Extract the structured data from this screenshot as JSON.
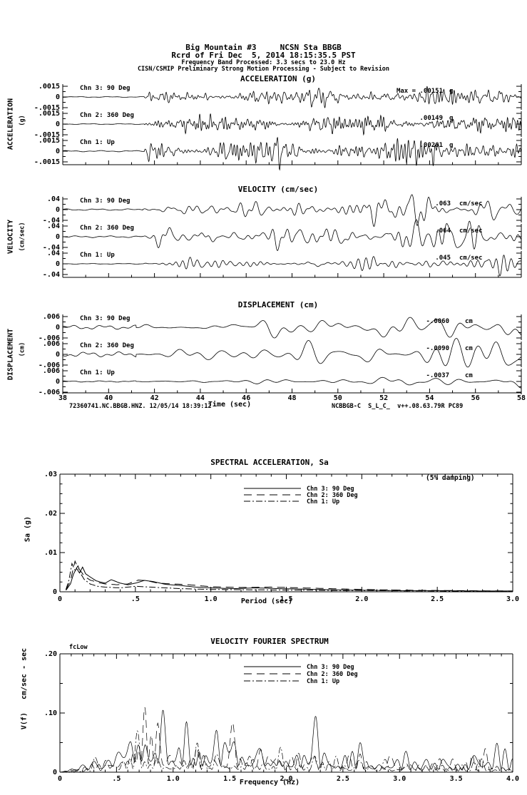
{
  "colors": {
    "ink": "#000000",
    "paper": "#ffffff"
  },
  "header": {
    "line1": "Big Mountain #3     NCSN Sta BBGB",
    "line2": "Rcrd of Fri Dec  5, 2014 18:15:35.5 PST",
    "line3": "Frequency Band Processed: 3.3 secs to 23.0 Hz",
    "line4": "CISN/CSMIP Preliminary Strong Motion Processing - Subject to Revision"
  },
  "footer": {
    "left": "72360741.NC.BBGB.HNZ. 12/05/14 18:39:12",
    "right": "NCBBGB-C  S_L_C_  v++.08.63.79R PC89"
  },
  "chart_data": [
    {
      "id": "timeseries-panels",
      "type": "line",
      "x": {
        "label": "Time (sec)",
        "min": 38,
        "max": 58,
        "minor_step": 1,
        "major_ticks": [
          38,
          40,
          42,
          44,
          46,
          48,
          50,
          52,
          54,
          56,
          58
        ],
        "major_labels": [
          "38",
          "40",
          "42",
          "44",
          "46",
          "48",
          "50",
          "52",
          "54",
          "56",
          "58"
        ]
      },
      "groups": [
        {
          "title": "ACCELERATION (g)",
          "side_label": "ACCELERATION",
          "side_unit": "(g)",
          "unit": "g",
          "tick_label": ".0015",
          "zero_label": "0",
          "neg_label": "-.0015",
          "tick_num": 0.0015,
          "channels": [
            {
              "label": "Chn 3: 90 Deg",
              "max_label": "Max =   .00151",
              "max_num": 0.00151
            },
            {
              "label": "Chn 2: 360 Deg",
              "max_label": ".00149",
              "max_num": 0.00149
            },
            {
              "label": "Chn 1: Up",
              "max_label": ".00261",
              "max_num": 0.00261
            }
          ]
        },
        {
          "title": "VELOCITY (cm/sec)",
          "side_label": "VELOCITY",
          "side_unit": "(cm/sec)",
          "unit": "cm/sec",
          "tick_label": ".04",
          "zero_label": "0",
          "neg_label": "-.04",
          "tick_num": 0.04,
          "channels": [
            {
              "label": "Chn 3: 90 Deg",
              "max_label": ".063",
              "max_num": 0.063
            },
            {
              "label": "Chn 2: 360 Deg",
              "max_label": ".064",
              "max_num": 0.064
            },
            {
              "label": "Chn 1: Up",
              "max_label": ".045",
              "max_num": 0.045
            }
          ]
        },
        {
          "title": "DISPLACEMENT (cm)",
          "side_label": "DISPLACEMENT",
          "side_unit": "(cm)",
          "unit": "cm",
          "tick_label": ".006",
          "zero_label": "0",
          "neg_label": "-.006",
          "tick_num": 0.006,
          "channels": [
            {
              "label": "Chn 3: 90 Deg",
              "max_label": "-.0060",
              "max_num": 0.006
            },
            {
              "label": "Chn 2: 360 Deg",
              "max_label": "-.0090",
              "max_num": 0.009
            },
            {
              "label": "Chn 1: Up",
              "max_label": "-.0037",
              "max_num": 0.0037
            }
          ]
        }
      ]
    },
    {
      "id": "spectral-acceleration",
      "type": "line",
      "title": "SPECTRAL ACCELERATION, Sa",
      "note": "(5% damping)",
      "xlabel": "Period (sec)",
      "ylabel": "Sa (g)",
      "xlim": [
        0,
        3
      ],
      "ylim": [
        0,
        0.03
      ],
      "x_major": [
        0,
        0.5,
        1,
        1.5,
        2,
        2.5,
        3
      ],
      "x_labels": [
        "0",
        ".5",
        "1.0",
        "1.5",
        "2.0",
        "2.5",
        "3.0"
      ],
      "y_major": [
        0,
        0.01,
        0.02,
        0.03
      ],
      "y_labels": [
        "0",
        ".01",
        ".02",
        ".03"
      ],
      "legend_position": "top-center",
      "series": [
        {
          "name": "Chn 3: 90 Deg",
          "style": "solid",
          "points": [
            [
              0.04,
              0.0004
            ],
            [
              0.07,
              0.002
            ],
            [
              0.09,
              0.0045
            ],
            [
              0.11,
              0.006
            ],
            [
              0.13,
              0.0048
            ],
            [
              0.15,
              0.0063
            ],
            [
              0.17,
              0.0046
            ],
            [
              0.2,
              0.0038
            ],
            [
              0.24,
              0.0028
            ],
            [
              0.3,
              0.0022
            ],
            [
              0.34,
              0.0031
            ],
            [
              0.4,
              0.0022
            ],
            [
              0.45,
              0.0018
            ],
            [
              0.5,
              0.0022
            ],
            [
              0.56,
              0.0029
            ],
            [
              0.62,
              0.0026
            ],
            [
              0.7,
              0.0019
            ],
            [
              0.8,
              0.0016
            ],
            [
              0.9,
              0.0012
            ],
            [
              1.0,
              0.001
            ],
            [
              1.15,
              0.0008
            ],
            [
              1.3,
              0.001
            ],
            [
              1.45,
              0.0008
            ],
            [
              1.6,
              0.0007
            ],
            [
              1.8,
              0.0005
            ],
            [
              2.0,
              0.0004
            ],
            [
              2.2,
              0.0003
            ],
            [
              2.5,
              0.0003
            ],
            [
              2.8,
              0.0002
            ],
            [
              3.0,
              0.0002
            ]
          ]
        },
        {
          "name": "Chn 2: 360 Deg",
          "style": "dash",
          "points": [
            [
              0.04,
              0.0005
            ],
            [
              0.07,
              0.0028
            ],
            [
              0.1,
              0.0078
            ],
            [
              0.12,
              0.006
            ],
            [
              0.14,
              0.0052
            ],
            [
              0.16,
              0.004
            ],
            [
              0.2,
              0.003
            ],
            [
              0.25,
              0.0024
            ],
            [
              0.3,
              0.002
            ],
            [
              0.38,
              0.0018
            ],
            [
              0.45,
              0.002
            ],
            [
              0.52,
              0.003
            ],
            [
              0.58,
              0.0028
            ],
            [
              0.65,
              0.0022
            ],
            [
              0.75,
              0.002
            ],
            [
              0.85,
              0.0018
            ],
            [
              1.0,
              0.0013
            ],
            [
              1.2,
              0.0011
            ],
            [
              1.4,
              0.0012
            ],
            [
              1.6,
              0.001
            ],
            [
              1.8,
              0.0008
            ],
            [
              2.0,
              0.0006
            ],
            [
              2.3,
              0.0004
            ],
            [
              2.6,
              0.0003
            ],
            [
              3.0,
              0.0002
            ]
          ]
        },
        {
          "name": "Chn 1: Up",
          "style": "dashdot",
          "points": [
            [
              0.04,
              0.0006
            ],
            [
              0.06,
              0.003
            ],
            [
              0.08,
              0.0072
            ],
            [
              0.1,
              0.0055
            ],
            [
              0.12,
              0.0066
            ],
            [
              0.14,
              0.0045
            ],
            [
              0.16,
              0.0032
            ],
            [
              0.2,
              0.002
            ],
            [
              0.25,
              0.0014
            ],
            [
              0.3,
              0.0012
            ],
            [
              0.4,
              0.001
            ],
            [
              0.5,
              0.0014
            ],
            [
              0.6,
              0.0012
            ],
            [
              0.8,
              0.0008
            ],
            [
              1.0,
              0.0006
            ],
            [
              1.3,
              0.0005
            ],
            [
              1.6,
              0.0004
            ],
            [
              2.0,
              0.0003
            ],
            [
              2.5,
              0.0002
            ],
            [
              3.0,
              0.0001
            ]
          ]
        }
      ]
    },
    {
      "id": "velocity-fourier-spectrum",
      "type": "line",
      "title": "VELOCITY FOURIER SPECTRUM",
      "marker": "fcLow",
      "xlabel": "Frequency (Hz)",
      "ylabel": "V(f)   cm/sec - sec",
      "xlim": [
        0,
        4
      ],
      "ylim": [
        0,
        0.2
      ],
      "x_major": [
        0,
        0.5,
        1,
        1.5,
        2,
        2.5,
        3,
        3.5,
        4
      ],
      "x_labels": [
        "0",
        ".5",
        "1.0",
        "1.5",
        "2.0",
        "2.5",
        "3.0",
        "3.5",
        "4.0"
      ],
      "y_major": [
        0,
        0.1,
        0.2
      ],
      "y_labels": [
        "0",
        ".10",
        ".20"
      ],
      "legend_position": "top-center",
      "series": [
        {
          "name": "Chn 3: 90 Deg",
          "style": "solid",
          "seed": 71,
          "envelope": [
            [
              0,
              0
            ],
            [
              0.15,
              0.008
            ],
            [
              0.3,
              0.025
            ],
            [
              0.45,
              0.05
            ],
            [
              0.55,
              0.06
            ],
            [
              0.65,
              0.09
            ],
            [
              0.75,
              0.105
            ],
            [
              0.85,
              0.08
            ],
            [
              0.95,
              0.065
            ],
            [
              1.05,
              0.075
            ],
            [
              1.2,
              0.06
            ],
            [
              1.35,
              0.05
            ],
            [
              1.5,
              0.065
            ],
            [
              1.7,
              0.055
            ],
            [
              1.9,
              0.06
            ],
            [
              2.1,
              0.045
            ],
            [
              2.3,
              0.04
            ],
            [
              2.6,
              0.035
            ],
            [
              2.9,
              0.028
            ],
            [
              3.2,
              0.025
            ],
            [
              3.5,
              0.022
            ],
            [
              3.8,
              0.025
            ],
            [
              4,
              0.02
            ]
          ]
        },
        {
          "name": "Chn 2: 360 Deg",
          "style": "dash",
          "seed": 72,
          "envelope": [
            [
              0,
              0
            ],
            [
              0.15,
              0.006
            ],
            [
              0.3,
              0.02
            ],
            [
              0.45,
              0.045
            ],
            [
              0.6,
              0.07
            ],
            [
              0.7,
              0.11
            ],
            [
              0.8,
              0.085
            ],
            [
              0.95,
              0.07
            ],
            [
              1.1,
              0.065
            ],
            [
              1.25,
              0.055
            ],
            [
              1.4,
              0.06
            ],
            [
              1.6,
              0.05
            ],
            [
              1.8,
              0.065
            ],
            [
              2.0,
              0.05
            ],
            [
              2.2,
              0.04
            ],
            [
              2.5,
              0.038
            ],
            [
              2.8,
              0.03
            ],
            [
              3.1,
              0.025
            ],
            [
              3.4,
              0.02
            ],
            [
              3.7,
              0.022
            ],
            [
              4,
              0.018
            ]
          ]
        },
        {
          "name": "Chn 1: Up",
          "style": "dashdot",
          "seed": 73,
          "envelope": [
            [
              0,
              0
            ],
            [
              0.2,
              0.01
            ],
            [
              0.35,
              0.025
            ],
            [
              0.5,
              0.04
            ],
            [
              0.65,
              0.055
            ],
            [
              0.8,
              0.07
            ],
            [
              0.95,
              0.055
            ],
            [
              1.1,
              0.05
            ],
            [
              1.3,
              0.045
            ],
            [
              1.5,
              0.05
            ],
            [
              1.7,
              0.045
            ],
            [
              2.0,
              0.04
            ],
            [
              2.3,
              0.03
            ],
            [
              2.6,
              0.028
            ],
            [
              3.0,
              0.022
            ],
            [
              3.4,
              0.018
            ],
            [
              3.7,
              0.02
            ],
            [
              4,
              0.015
            ]
          ]
        }
      ]
    }
  ]
}
